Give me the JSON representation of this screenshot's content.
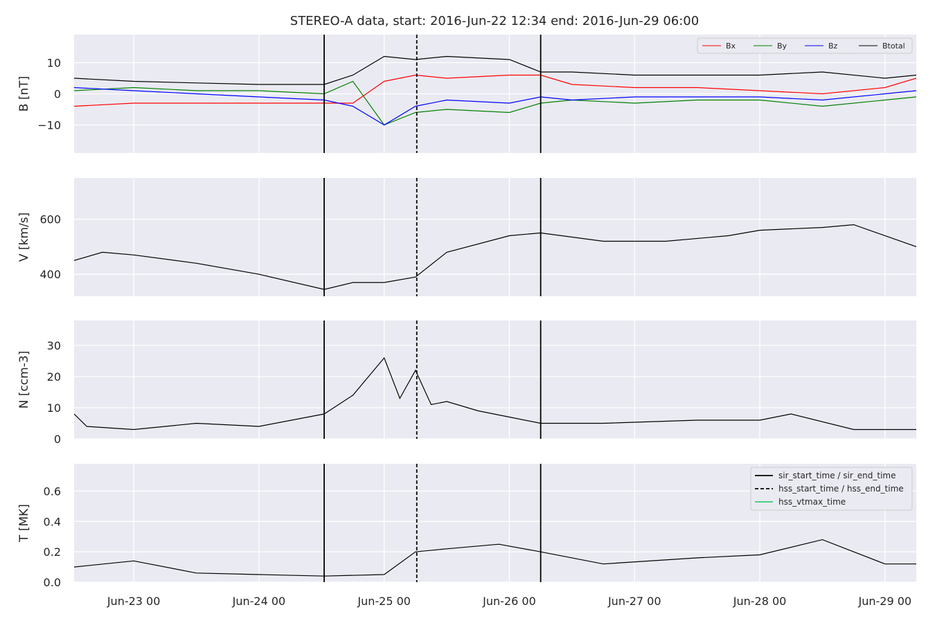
{
  "chart_data": {
    "type": "line",
    "title": "STEREO-A data, start: 2016-Jun-22 12:34  end: 2016-Jun-29 06:00",
    "x_range": [
      "2016-06-22T12:34",
      "2016-06-29T06:00"
    ],
    "x_ticks": [
      {
        "date": "2016-06-23T00:00",
        "label": "Jun-23 00"
      },
      {
        "date": "2016-06-24T00:00",
        "label": "Jun-24 00"
      },
      {
        "date": "2016-06-25T00:00",
        "label": "Jun-25 00"
      },
      {
        "date": "2016-06-26T00:00",
        "label": "Jun-26 00"
      },
      {
        "date": "2016-06-27T00:00",
        "label": "Jun-27 00"
      },
      {
        "date": "2016-06-28T00:00",
        "label": "Jun-28 00"
      },
      {
        "date": "2016-06-29T00:00",
        "label": "Jun-29 00"
      }
    ],
    "event_lines": [
      {
        "name": "sir_start_time",
        "date": "2016-06-24T12:30",
        "style": "solid"
      },
      {
        "name": "hss_start_time",
        "date": "2016-06-25T06:15",
        "style": "dashed"
      },
      {
        "name": "sir_end_time",
        "date": "2016-06-26T06:00",
        "style": "solid"
      }
    ],
    "legend_events": [
      {
        "label": "sir_start_time / sir_end_time",
        "style": "solid",
        "color": "#000000"
      },
      {
        "label": "hss_start_time / hss_end_time",
        "style": "dashed",
        "color": "#000000"
      },
      {
        "label": "hss_vtmax_time",
        "style": "solid",
        "color": "#2ecc71"
      }
    ],
    "panels": [
      {
        "key": "B",
        "ylabel": "B [nT]",
        "ylim": [
          -19,
          19
        ],
        "yticks": [
          -10,
          0,
          10
        ],
        "ytick_labels": [
          "−10",
          "0",
          "10"
        ],
        "legend_position": "top-right",
        "series": [
          {
            "name": "Bx",
            "color": "#ff0000",
            "x": [
              "2016-06-22T12:34",
              "2016-06-23T00:00",
              "2016-06-23T12:00",
              "2016-06-24T00:00",
              "2016-06-24T12:30",
              "2016-06-24T18:00",
              "2016-06-25T00:00",
              "2016-06-25T06:00",
              "2016-06-25T12:00",
              "2016-06-26T00:00",
              "2016-06-26T06:00",
              "2016-06-26T12:00",
              "2016-06-27T00:00",
              "2016-06-27T12:00",
              "2016-06-28T00:00",
              "2016-06-28T12:00",
              "2016-06-29T00:00",
              "2016-06-29T06:00"
            ],
            "values": [
              -4,
              -3,
              -3,
              -3,
              -3,
              -3,
              4,
              6,
              5,
              6,
              6,
              3,
              2,
              2,
              1,
              0,
              2,
              5
            ]
          },
          {
            "name": "By",
            "color": "#008000",
            "x": [
              "2016-06-22T12:34",
              "2016-06-23T00:00",
              "2016-06-23T12:00",
              "2016-06-24T00:00",
              "2016-06-24T12:30",
              "2016-06-24T18:00",
              "2016-06-25T00:00",
              "2016-06-25T06:00",
              "2016-06-25T12:00",
              "2016-06-26T00:00",
              "2016-06-26T06:00",
              "2016-06-26T12:00",
              "2016-06-27T00:00",
              "2016-06-27T12:00",
              "2016-06-28T00:00",
              "2016-06-28T12:00",
              "2016-06-29T00:00",
              "2016-06-29T06:00"
            ],
            "values": [
              1,
              2,
              1,
              1,
              0,
              4,
              -10,
              -6,
              -5,
              -6,
              -3,
              -2,
              -3,
              -2,
              -2,
              -4,
              -2,
              -1
            ]
          },
          {
            "name": "Bz",
            "color": "#0000ff",
            "x": [
              "2016-06-22T12:34",
              "2016-06-23T00:00",
              "2016-06-23T12:00",
              "2016-06-24T00:00",
              "2016-06-24T12:30",
              "2016-06-24T18:00",
              "2016-06-25T00:00",
              "2016-06-25T06:00",
              "2016-06-25T12:00",
              "2016-06-26T00:00",
              "2016-06-26T06:00",
              "2016-06-26T12:00",
              "2016-06-27T00:00",
              "2016-06-27T12:00",
              "2016-06-28T00:00",
              "2016-06-28T12:00",
              "2016-06-29T00:00",
              "2016-06-29T06:00"
            ],
            "values": [
              2,
              1,
              0,
              -1,
              -2,
              -4,
              -10,
              -4,
              -2,
              -3,
              -1,
              -2,
              -1,
              -1,
              -1,
              -2,
              0,
              1
            ]
          },
          {
            "name": "Btotal",
            "color": "#000000",
            "x": [
              "2016-06-22T12:34",
              "2016-06-23T00:00",
              "2016-06-23T12:00",
              "2016-06-24T00:00",
              "2016-06-24T12:30",
              "2016-06-24T18:00",
              "2016-06-25T00:00",
              "2016-06-25T06:00",
              "2016-06-25T12:00",
              "2016-06-26T00:00",
              "2016-06-26T06:00",
              "2016-06-26T12:00",
              "2016-06-27T00:00",
              "2016-06-27T12:00",
              "2016-06-28T00:00",
              "2016-06-28T12:00",
              "2016-06-29T00:00",
              "2016-06-29T06:00"
            ],
            "values": [
              5,
              4,
              3.5,
              3,
              3,
              6,
              12,
              11,
              12,
              11,
              7,
              7,
              6,
              6,
              6,
              7,
              5,
              6
            ]
          }
        ]
      },
      {
        "key": "V",
        "ylabel": "V [km/s]",
        "ylim": [
          320,
          750
        ],
        "yticks": [
          400,
          600
        ],
        "ytick_labels": [
          "400",
          "600"
        ],
        "series": [
          {
            "name": "",
            "color": "#000000",
            "x": [
              "2016-06-22T12:34",
              "2016-06-22T18:00",
              "2016-06-23T00:00",
              "2016-06-23T12:00",
              "2016-06-24T00:00",
              "2016-06-24T12:30",
              "2016-06-24T18:00",
              "2016-06-25T00:00",
              "2016-06-25T06:00",
              "2016-06-25T12:00",
              "2016-06-26T00:00",
              "2016-06-26T06:00",
              "2016-06-26T18:00",
              "2016-06-27T06:00",
              "2016-06-27T18:00",
              "2016-06-28T00:00",
              "2016-06-28T12:00",
              "2016-06-28T18:00",
              "2016-06-29T06:00"
            ],
            "values": [
              450,
              480,
              470,
              440,
              400,
              345,
              370,
              370,
              390,
              480,
              540,
              550,
              520,
              520,
              540,
              560,
              570,
              580,
              500
            ]
          }
        ]
      },
      {
        "key": "N",
        "ylabel": "N [ccm-3]",
        "ylim": [
          0,
          38
        ],
        "yticks": [
          0,
          10,
          20,
          30
        ],
        "ytick_labels": [
          "0",
          "10",
          "20",
          "30"
        ],
        "series": [
          {
            "name": "",
            "color": "#000000",
            "x": [
              "2016-06-22T12:34",
              "2016-06-22T15:00",
              "2016-06-23T00:00",
              "2016-06-23T12:00",
              "2016-06-24T00:00",
              "2016-06-24T12:30",
              "2016-06-24T18:00",
              "2016-06-25T00:00",
              "2016-06-25T03:00",
              "2016-06-25T06:00",
              "2016-06-25T09:00",
              "2016-06-25T12:00",
              "2016-06-25T18:00",
              "2016-06-26T00:00",
              "2016-06-26T06:00",
              "2016-06-26T18:00",
              "2016-06-27T12:00",
              "2016-06-28T00:00",
              "2016-06-28T06:00",
              "2016-06-28T18:00",
              "2016-06-29T06:00"
            ],
            "values": [
              8,
              4,
              3,
              5,
              4,
              8,
              14,
              26,
              13,
              22,
              11,
              12,
              9,
              7,
              5,
              5,
              6,
              6,
              8,
              3,
              3
            ]
          }
        ]
      },
      {
        "key": "T",
        "ylabel": "T [MK]",
        "ylim": [
          0,
          0.78
        ],
        "yticks": [
          0.0,
          0.2,
          0.4,
          0.6
        ],
        "ytick_labels": [
          "0.0",
          "0.2",
          "0.4",
          "0.6"
        ],
        "legend_position": "top-right",
        "series": [
          {
            "name": "",
            "color": "#000000",
            "x": [
              "2016-06-22T12:34",
              "2016-06-23T00:00",
              "2016-06-23T12:00",
              "2016-06-24T00:00",
              "2016-06-24T12:30",
              "2016-06-25T00:00",
              "2016-06-25T06:00",
              "2016-06-25T12:00",
              "2016-06-25T22:00",
              "2016-06-26T06:00",
              "2016-06-26T18:00",
              "2016-06-27T12:00",
              "2016-06-28T00:00",
              "2016-06-28T12:00",
              "2016-06-29T00:00",
              "2016-06-29T06:00"
            ],
            "values": [
              0.1,
              0.14,
              0.06,
              0.05,
              0.04,
              0.05,
              0.2,
              0.22,
              0.25,
              0.2,
              0.12,
              0.16,
              0.18,
              0.28,
              0.12,
              0.12
            ]
          }
        ]
      }
    ]
  }
}
